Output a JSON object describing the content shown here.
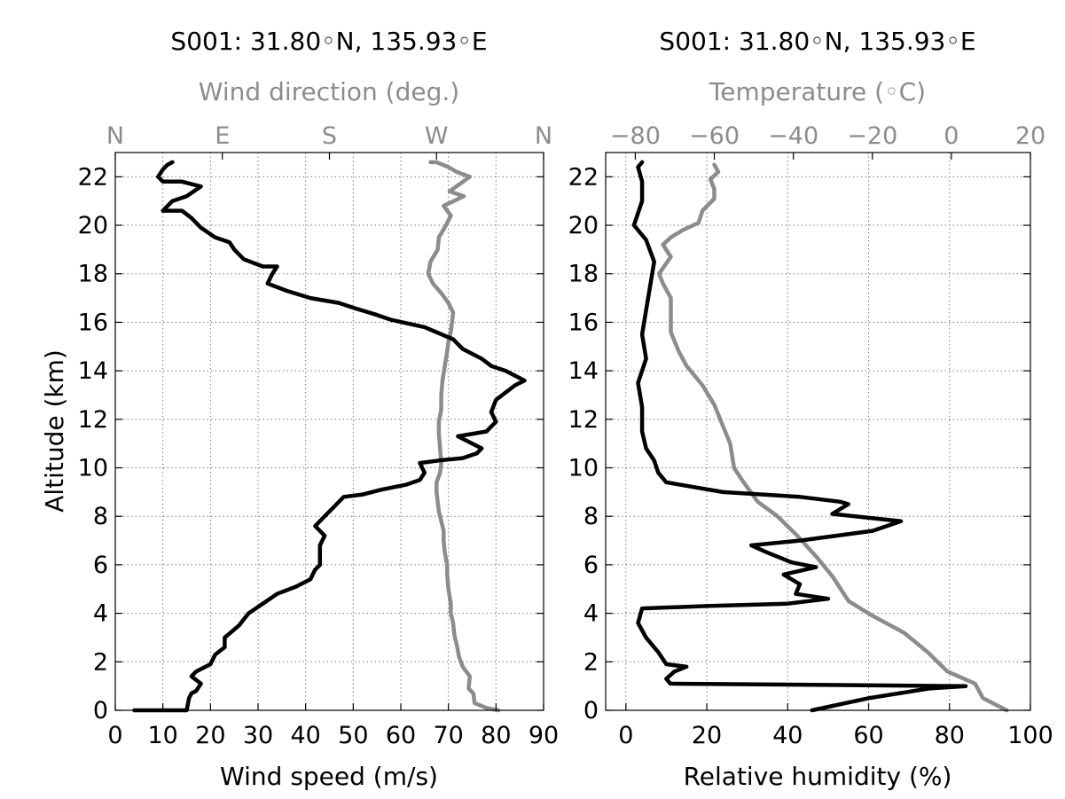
{
  "colors": {
    "primary_series": "#000000",
    "secondary_series": "#8c8c8c",
    "grid": "#7a7a7a"
  },
  "chart_data": [
    {
      "type": "line",
      "title": "S001: 31.80◦N, 135.93◦E",
      "ylabel": "Altitude (km)",
      "ylim": [
        0,
        23
      ],
      "yticks": [
        "0",
        "2",
        "4",
        "6",
        "8",
        "10",
        "12",
        "14",
        "16",
        "18",
        "20",
        "22"
      ],
      "grid": true,
      "bottom_axis": {
        "label": "Wind speed (m/s)",
        "lim": [
          0,
          90
        ],
        "ticks": [
          "0",
          "10",
          "20",
          "30",
          "40",
          "50",
          "60",
          "70",
          "80",
          "90"
        ],
        "color": "#000000"
      },
      "top_axis": {
        "label": "Wind direction (deg.)",
        "lim": [
          0,
          360
        ],
        "tick_values": [
          0,
          90,
          180,
          270,
          360
        ],
        "ticks": [
          "N",
          "E",
          "S",
          "W",
          "N"
        ],
        "color": "#8c8c8c"
      },
      "series": [
        {
          "axis": "bottom",
          "color": "#000000",
          "points": [
            [
              4,
              0
            ],
            [
              15,
              0
            ],
            [
              15.5,
              0.5
            ],
            [
              16,
              0.7
            ],
            [
              17,
              0.8
            ],
            [
              18,
              1.1
            ],
            [
              16,
              1.4
            ],
            [
              17,
              1.6
            ],
            [
              20,
              1.9
            ],
            [
              21,
              2.3
            ],
            [
              23,
              2.6
            ],
            [
              23,
              3
            ],
            [
              26,
              3.5
            ],
            [
              28,
              4
            ],
            [
              31,
              4.4
            ],
            [
              34,
              4.8
            ],
            [
              38,
              5.1
            ],
            [
              41,
              5.4
            ],
            [
              42,
              5.8
            ],
            [
              43,
              6
            ],
            [
              43,
              6.4
            ],
            [
              43,
              6.8
            ],
            [
              44,
              7.2
            ],
            [
              42,
              7.6
            ],
            [
              44,
              8
            ],
            [
              46,
              8.4
            ],
            [
              48,
              8.8
            ],
            [
              52,
              8.9
            ],
            [
              56,
              9.1
            ],
            [
              61,
              9.3
            ],
            [
              64,
              9.5
            ],
            [
              65,
              9.8
            ],
            [
              64,
              10.2
            ],
            [
              68,
              10.3
            ],
            [
              73,
              10.4
            ],
            [
              76,
              10.6
            ],
            [
              77,
              10.8
            ],
            [
              72,
              11.3
            ],
            [
              78,
              11.5
            ],
            [
              80,
              11.9
            ],
            [
              79,
              12.3
            ],
            [
              80,
              12.8
            ],
            [
              84,
              13.4
            ],
            [
              86,
              13.6
            ],
            [
              82,
              14
            ],
            [
              79,
              14.2
            ],
            [
              77,
              14.5
            ],
            [
              73,
              14.9
            ],
            [
              71,
              15.3
            ],
            [
              65,
              15.8
            ],
            [
              58,
              16.1
            ],
            [
              55,
              16.3
            ],
            [
              50,
              16.6
            ],
            [
              47,
              16.8
            ],
            [
              41,
              17
            ],
            [
              36,
              17.3
            ],
            [
              32,
              17.6
            ],
            [
              33,
              18
            ],
            [
              34,
              18.3
            ],
            [
              31,
              18.3
            ],
            [
              27,
              18.6
            ],
            [
              25,
              19
            ],
            [
              24,
              19.3
            ],
            [
              21,
              19.5
            ],
            [
              18,
              19.9
            ],
            [
              16,
              20.3
            ],
            [
              14,
              20.6
            ],
            [
              10,
              20.6
            ],
            [
              12,
              21
            ],
            [
              15,
              21.2
            ],
            [
              18,
              21.6
            ],
            [
              14,
              21.8
            ],
            [
              10,
              21.8
            ],
            [
              9,
              22
            ],
            [
              10,
              22.3
            ],
            [
              11,
              22.5
            ],
            [
              12,
              22.6
            ]
          ]
        },
        {
          "axis": "top",
          "color": "#8c8c8c",
          "points": [
            [
              322,
              0
            ],
            [
              312,
              0.1
            ],
            [
              302,
              0.3
            ],
            [
              301,
              0.7
            ],
            [
              297,
              0.9
            ],
            [
              298,
              1.4
            ],
            [
              292,
              1.8
            ],
            [
              289,
              2.2
            ],
            [
              287,
              2.7
            ],
            [
              285,
              3.1
            ],
            [
              284,
              3.6
            ],
            [
              282,
              4
            ],
            [
              282,
              4.4
            ],
            [
              280,
              5
            ],
            [
              279,
              5.6
            ],
            [
              279,
              6
            ],
            [
              277,
              6.5
            ],
            [
              276,
              7
            ],
            [
              276,
              7.4
            ],
            [
              274,
              7.8
            ],
            [
              272,
              8.2
            ],
            [
              271,
              8.6
            ],
            [
              270,
              9
            ],
            [
              270,
              9.4
            ],
            [
              273,
              9.8
            ],
            [
              274,
              10.2
            ],
            [
              273,
              10.8
            ],
            [
              272,
              11.4
            ],
            [
              272,
              11.9
            ],
            [
              274,
              12.4
            ],
            [
              274,
              13
            ],
            [
              275,
              13.6
            ],
            [
              277,
              14.2
            ],
            [
              279,
              14.8
            ],
            [
              280,
              15.2
            ],
            [
              282,
              15.6
            ],
            [
              283,
              16
            ],
            [
              284,
              16.4
            ],
            [
              280,
              16.8
            ],
            [
              274,
              17.2
            ],
            [
              267,
              17.6
            ],
            [
              263,
              18
            ],
            [
              265,
              18.5
            ],
            [
              271,
              19
            ],
            [
              272,
              19.5
            ],
            [
              278,
              20
            ],
            [
              282,
              20.4
            ],
            [
              276,
              20.8
            ],
            [
              293,
              21.2
            ],
            [
              281,
              21.4
            ],
            [
              298,
              22
            ],
            [
              287,
              22.2
            ],
            [
              280,
              22.4
            ],
            [
              270,
              22.6
            ],
            [
              265,
              22.6
            ]
          ]
        }
      ]
    },
    {
      "type": "line",
      "title": "S001: 31.80◦N, 135.93◦E",
      "ylim": [
        0,
        23
      ],
      "yticks": [
        "0",
        "2",
        "4",
        "6",
        "8",
        "10",
        "12",
        "14",
        "16",
        "18",
        "20",
        "22"
      ],
      "grid": true,
      "bottom_axis": {
        "label": "Relative humidity (%)",
        "lim": [
          -5,
          100
        ],
        "ticks": [
          "0",
          "20",
          "40",
          "60",
          "80",
          "100"
        ],
        "color": "#000000"
      },
      "top_axis": {
        "label": "Temperature (◦C)",
        "lim": [
          -87.5,
          20
        ],
        "tick_values": [
          -80,
          -60,
          -40,
          -20,
          0,
          20
        ],
        "ticks": [
          "−80",
          "−60",
          "−40",
          "−20",
          "0",
          "20"
        ],
        "color": "#8c8c8c"
      },
      "series": [
        {
          "axis": "bottom",
          "color": "#000000",
          "points": [
            [
              46,
              0
            ],
            [
              60,
              0.5
            ],
            [
              75,
              0.9
            ],
            [
              84,
              1
            ],
            [
              11,
              1.1
            ],
            [
              10,
              1.3
            ],
            [
              12,
              1.6
            ],
            [
              15,
              1.8
            ],
            [
              10,
              1.9
            ],
            [
              8,
              2.4
            ],
            [
              5,
              3
            ],
            [
              3,
              3.6
            ],
            [
              4,
              4.2
            ],
            [
              20,
              4.3
            ],
            [
              40,
              4.4
            ],
            [
              50,
              4.6
            ],
            [
              42,
              4.8
            ],
            [
              43,
              5.2
            ],
            [
              39,
              5.6
            ],
            [
              47,
              5.9
            ],
            [
              41,
              6.1
            ],
            [
              35,
              6.5
            ],
            [
              31,
              6.8
            ],
            [
              43,
              7
            ],
            [
              61,
              7.4
            ],
            [
              68,
              7.8
            ],
            [
              51,
              8.1
            ],
            [
              55,
              8.5
            ],
            [
              53,
              8.6
            ],
            [
              43,
              8.8
            ],
            [
              24,
              9
            ],
            [
              10,
              9.4
            ],
            [
              8,
              9.8
            ],
            [
              7,
              10.3
            ],
            [
              5,
              10.8
            ],
            [
              4,
              11.5
            ],
            [
              4,
              12.5
            ],
            [
              3,
              13.5
            ],
            [
              5,
              14.5
            ],
            [
              4,
              15.5
            ],
            [
              5,
              16.5
            ],
            [
              6,
              17.5
            ],
            [
              7,
              18.5
            ],
            [
              5,
              19.4
            ],
            [
              2,
              20
            ],
            [
              3,
              20.5
            ],
            [
              4,
              21
            ],
            [
              4,
              21.8
            ],
            [
              3,
              22.4
            ],
            [
              4,
              22.6
            ]
          ]
        },
        {
          "axis": "top",
          "color": "#8c8c8c",
          "points": [
            [
              14,
              0
            ],
            [
              8,
              0.5
            ],
            [
              6,
              1.1
            ],
            [
              -1,
              1.6
            ],
            [
              -6,
              2.4
            ],
            [
              -12,
              3.2
            ],
            [
              -20,
              3.9
            ],
            [
              -26,
              4.5
            ],
            [
              -30,
              5.5
            ],
            [
              -34,
              6.3
            ],
            [
              -39,
              7.2
            ],
            [
              -44,
              8
            ],
            [
              -49,
              8.6
            ],
            [
              -53,
              9.5
            ],
            [
              -55,
              10
            ],
            [
              -56,
              11
            ],
            [
              -58,
              11.8
            ],
            [
              -60,
              12.6
            ],
            [
              -63,
              13.4
            ],
            [
              -67,
              14.2
            ],
            [
              -69,
              14.8
            ],
            [
              -71,
              15.6
            ],
            [
              -71,
              16.2
            ],
            [
              -71,
              17
            ],
            [
              -73,
              17.6
            ],
            [
              -74,
              18
            ],
            [
              -71,
              18.7
            ],
            [
              -73,
              19.2
            ],
            [
              -71,
              19.5
            ],
            [
              -68,
              19.8
            ],
            [
              -64,
              20.1
            ],
            [
              -63,
              20.6
            ],
            [
              -60,
              21.1
            ],
            [
              -60,
              21.5
            ],
            [
              -61,
              21.9
            ],
            [
              -59,
              22.2
            ],
            [
              -60,
              22.5
            ]
          ]
        }
      ]
    }
  ]
}
